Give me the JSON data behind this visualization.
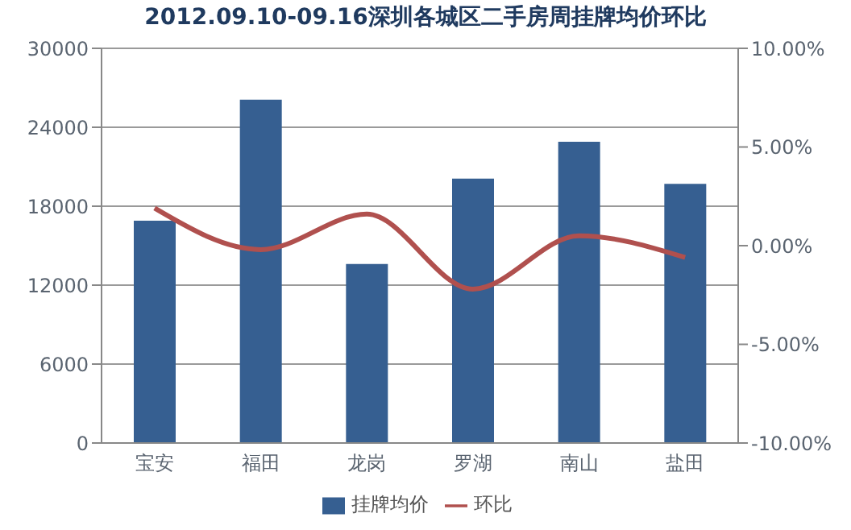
{
  "chart_data": {
    "type": "bar",
    "title": "2012.09.10-09.16深圳各城区二手房周挂牌均价环比",
    "categories": [
      "宝安",
      "福田",
      "龙岗",
      "罗湖",
      "南山",
      "盐田"
    ],
    "series": [
      {
        "name": "挂牌均价",
        "color": "#365f91",
        "values": [
          16900,
          26100,
          13600,
          20100,
          22900,
          19700
        ]
      },
      {
        "name": "环比",
        "type": "line",
        "axis": "y2",
        "color": "#b0504e",
        "values": [
          1.9,
          -0.2,
          1.6,
          -2.2,
          0.5,
          -0.6
        ]
      }
    ],
    "ylim": [
      0,
      30000
    ],
    "yticks": [
      0,
      6000,
      12000,
      18000,
      24000,
      30000
    ],
    "y2lim": [
      -10,
      10
    ],
    "y2ticks": [
      {
        "value": -10,
        "label": "-10.00%"
      },
      {
        "value": -5,
        "label": "-5.00%"
      },
      {
        "value": 0,
        "label": "0.00%"
      },
      {
        "value": 5,
        "label": "5.00%"
      },
      {
        "value": 10,
        "label": "10.00%"
      }
    ],
    "grid": "y",
    "legend": "bottom",
    "marker": "none",
    "line_style": "solid"
  }
}
